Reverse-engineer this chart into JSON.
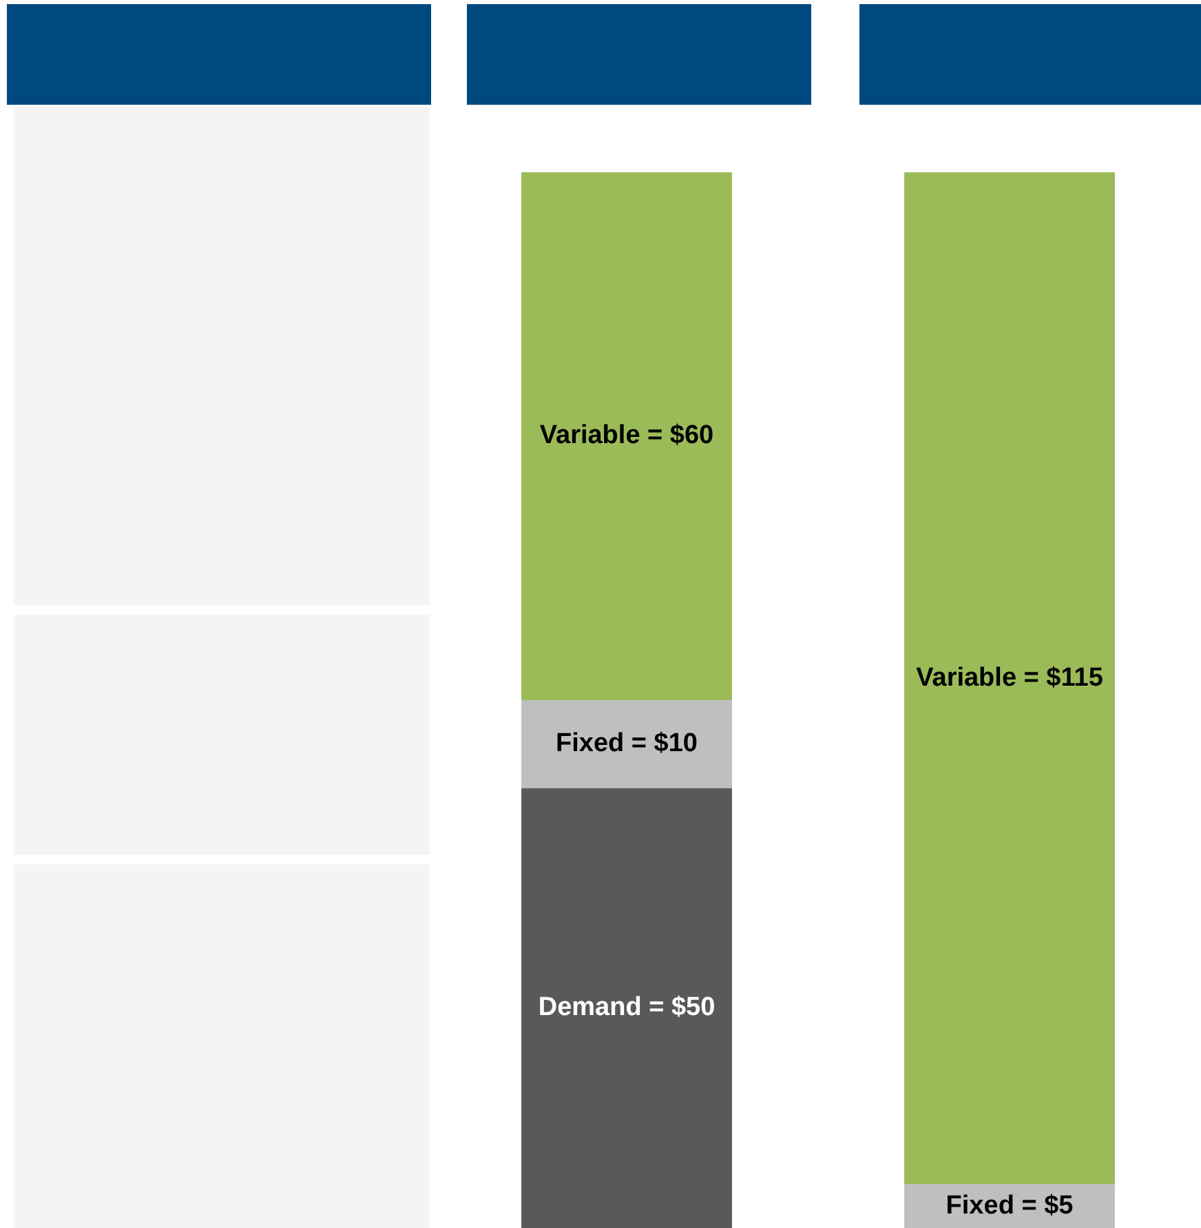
{
  "chart_data": {
    "type": "bar",
    "stacked": true,
    "categories": [
      null,
      null
    ],
    "series": [
      {
        "color": "#595959",
        "values": [
          50,
          null
        ],
        "value_labels": [
          "Demand = $50",
          null
        ]
      },
      {
        "color": "#bfbfbf",
        "values": [
          10,
          5
        ],
        "value_labels": [
          "Fixed = $10",
          "Fixed = $5"
        ]
      },
      {
        "color": "#9bbb59",
        "values": [
          60,
          115
        ],
        "value_labels": [
          "Variable = $60",
          "Variable = $115"
        ]
      }
    ]
  }
}
